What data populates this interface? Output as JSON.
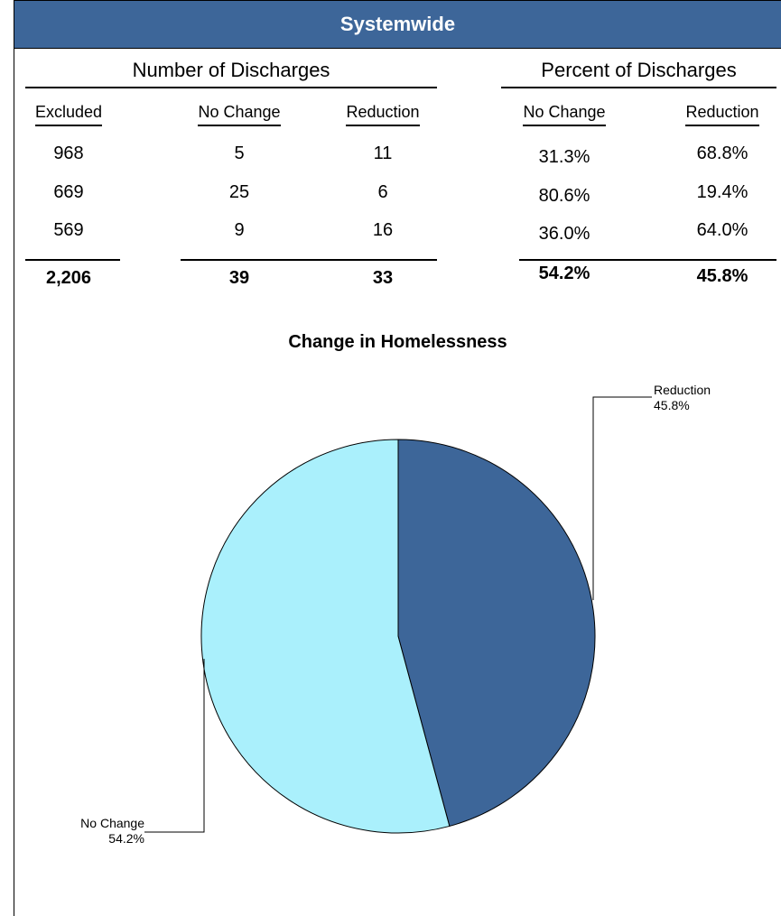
{
  "header": {
    "title": "Systemwide"
  },
  "groups": {
    "number": "Number of Discharges",
    "percent": "Percent of Discharges"
  },
  "columns": [
    "Excluded",
    "No Change",
    "Reduction",
    "No Change",
    "Reduction"
  ],
  "rows": [
    [
      "968",
      "5",
      "11",
      "31.3%",
      "68.8%"
    ],
    [
      "669",
      "25",
      "6",
      "80.6%",
      "19.4%"
    ],
    [
      "569",
      "9",
      "16",
      "36.0%",
      "64.0%"
    ]
  ],
  "totals": [
    "2,206",
    "39",
    "33",
    "54.2%",
    "45.8%"
  ],
  "chart_data": {
    "type": "pie",
    "title": "Change in Homelessness",
    "categories": [
      "Reduction",
      "No Change"
    ],
    "values": [
      45.8,
      54.2
    ],
    "value_labels": [
      "45.8%",
      "54.2%"
    ],
    "colors": [
      "#3d6699",
      "#aaf0fc"
    ]
  }
}
